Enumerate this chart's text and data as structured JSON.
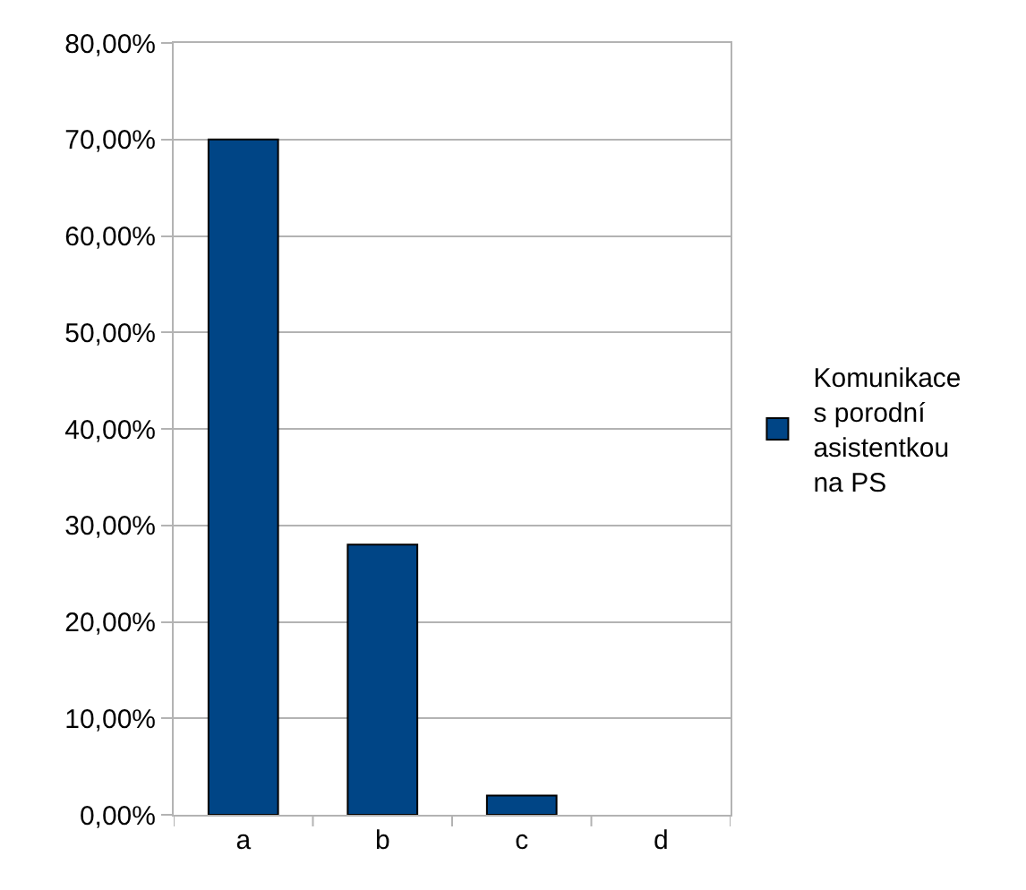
{
  "chart_data": {
    "type": "bar",
    "categories": [
      "a",
      "b",
      "c",
      "d"
    ],
    "series": [
      {
        "name": "Komunikace s porodní asistentkou na PS",
        "color": "#004586",
        "values": [
          70,
          28,
          2,
          0
        ]
      }
    ],
    "ylim": [
      0,
      80
    ],
    "yticks": [
      {
        "value": 0,
        "label": "0,00%"
      },
      {
        "value": 10,
        "label": "10,00%"
      },
      {
        "value": 20,
        "label": "20,00%"
      },
      {
        "value": 30,
        "label": "30,00%"
      },
      {
        "value": 40,
        "label": "40,00%"
      },
      {
        "value": 50,
        "label": "50,00%"
      },
      {
        "value": 60,
        "label": "60,00%"
      },
      {
        "value": 70,
        "label": "70,00%"
      },
      {
        "value": 80,
        "label": "80,00%"
      }
    ],
    "grid": "y",
    "legend": "right"
  }
}
